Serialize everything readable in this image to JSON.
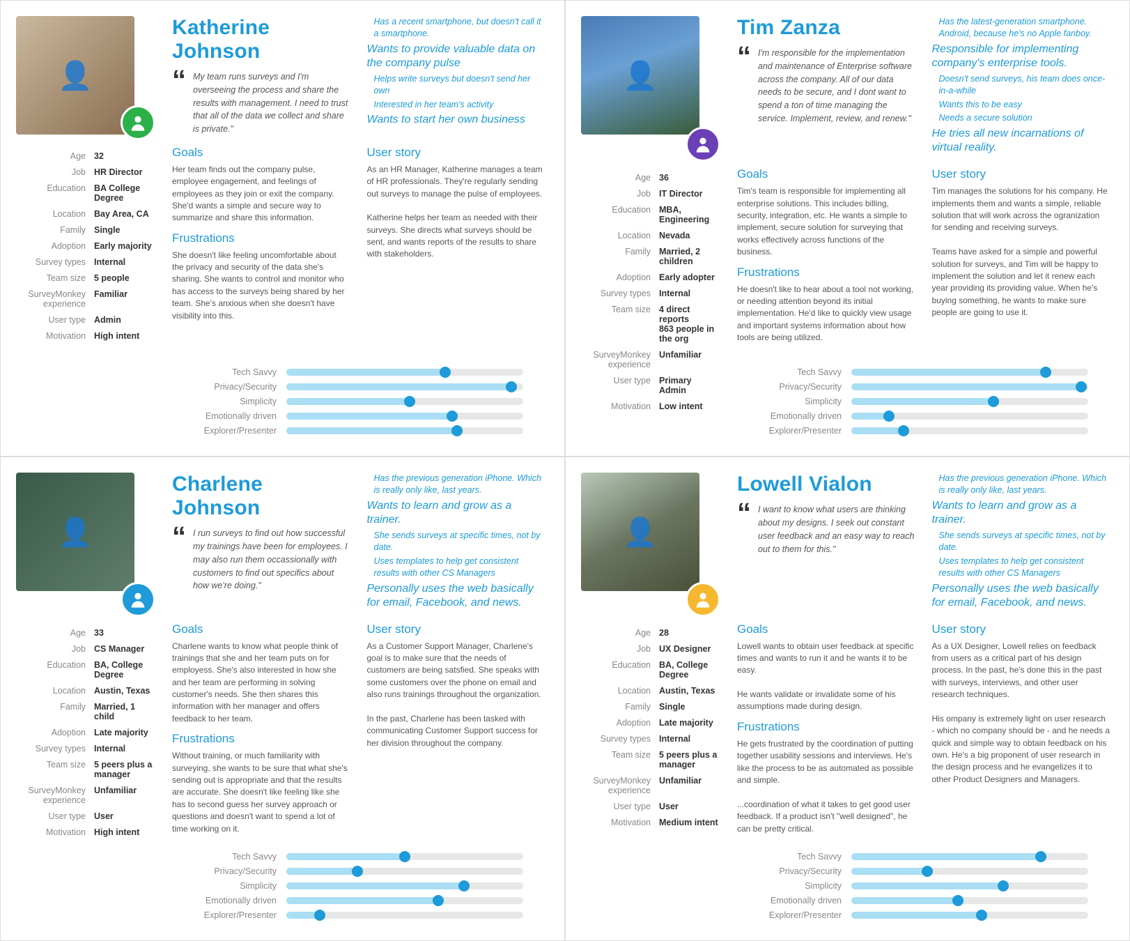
{
  "colors": {
    "accent": "#1e9bd8",
    "fill": "#a9def4",
    "track": "#e7e7e7",
    "label": "#888888",
    "body": "#555555"
  },
  "attr_labels": [
    "Age",
    "Job",
    "Education",
    "Location",
    "Family",
    "Adoption",
    "Survey types",
    "Team size",
    "SurveyMonkey experience",
    "User type",
    "Motivation"
  ],
  "slider_labels": [
    "Tech Savvy",
    "Privacy/Security",
    "Simplicity",
    "Emotionally driven",
    "Explorer/Presenter"
  ],
  "section_headings": {
    "goals": "Goals",
    "frustrations": "Frustrations",
    "user_story": "User story"
  },
  "personas": [
    {
      "name": "Katherine Johnson",
      "photo_bg": "linear-gradient(135deg,#cbb89e,#8a6f52)",
      "badge_bg": "#2bb04a",
      "quote": "My team runs surveys and I'm overseeing the process and share the results with management. I need to trust that all of the data we collect and share is private.\"",
      "traits": [
        {
          "t": "Has a recent smartphone, but doesn't call it a smartphone.",
          "hl": false
        },
        {
          "t": "Wants to provide valuable data on the company pulse",
          "hl": true
        },
        {
          "t": "Helps write surveys but doesn't send her own",
          "hl": false
        },
        {
          "t": "Interested in her team's activity",
          "hl": false
        },
        {
          "t": "Wants to start her own business",
          "hl": true
        }
      ],
      "attrs": [
        "32",
        "HR Director",
        "BA College Degree",
        "Bay Area, CA",
        "Single",
        "Early majority",
        "Internal",
        "5 people",
        "Familiar",
        "Admin",
        "High intent"
      ],
      "goals": "Her team finds out the company pulse, employee engagement, and feelings of employees as they join or exit the company. She'd wants a simple and secure way to summarize and share this information.",
      "frustrations": "She doesn't like feeling uncomfortable about the privacy and security of the data she's sharing. She wants to control and monitor who has access to the surveys being shared by her team. She's anxious when she doesn't have visibility into this.",
      "user_story": "As an HR Manager, Katherine manages a team of HR professionals. They're regularly sending out surveys to manage the pulse of employees.\n\nKatherine helps her team as needed with their surveys. She directs what surveys should be sent, and wants reports of the results to share with stakeholders.",
      "sliders": [
        67,
        95,
        52,
        70,
        72
      ]
    },
    {
      "name": "Tim Zanza",
      "photo_bg": "linear-gradient(160deg,#4a7bb5 0%,#6aa0d4 40%,#3a5c3a 100%)",
      "badge_bg": "#6b3fb5",
      "quote": "I'm responsible for the implementation and maintenance of Enterprise software across the company. All of our data needs to be secure, and I dont want to spend a ton of time managing the service. Implement, review, and renew.\"",
      "traits": [
        {
          "t": "Has the latest-generation smartphone. Android, because he's no Apple fanboy.",
          "hl": false
        },
        {
          "t": "Responsible for implementing company's enterprise tools.",
          "hl": true
        },
        {
          "t": "Doesn't send surveys, his team does once-in-a-while",
          "hl": false
        },
        {
          "t": "Wants this to be easy",
          "hl": false
        },
        {
          "t": "Needs a secure solution",
          "hl": false
        },
        {
          "t": "He tries all new incarnations of virtual reality.",
          "hl": true
        }
      ],
      "attrs": [
        "36",
        "IT Director",
        "MBA, Engineering",
        "Nevada",
        "Married, 2 children",
        "Early adopter",
        "Internal",
        "4 direct reports\n863 people in the org",
        "Unfamiliar",
        "Primary Admin",
        "Low intent"
      ],
      "goals": "Tim's team is responsible for implementing all enterprise solutions. This includes billing, security, integration, etc. He wants a simple to implement, secure solution for surveying that works effectively across functions of the business.",
      "frustrations": "He doesn't like to hear about a tool not working, or needing attention beyond its initial implementation. He'd like to quickly view usage and important systems information about how tools are being utilized.",
      "user_story": "Tim manages the solutions for his company. He implements them and wants a simple, reliable solution that will work across the ogranization for sending and receiving surveys.\n\nTeams have asked for a simple and powerful solution for surveys, and Tim will be happy to implement the solution and let it renew each year providing its providing value. When he's buying something, he wants to make sure people are going to use it.",
      "sliders": [
        82,
        97,
        60,
        16,
        22
      ]
    },
    {
      "name": "Charlene Johnson",
      "photo_bg": "linear-gradient(135deg,#3a5a4a,#5e7d6a)",
      "badge_bg": "#1e9bd8",
      "quote": "I run surveys to find out how successful my trainings have been for employees. I may also run them occassionally with customers to find out specifics about how we're doing.\"",
      "traits": [
        {
          "t": "Has the previous generation iPhone. Which is really only like, last years.",
          "hl": false
        },
        {
          "t": "Wants to learn and grow as a trainer.",
          "hl": true
        },
        {
          "t": "She sends surveys at specific times, not by date.",
          "hl": false
        },
        {
          "t": "Uses templates to help get consistent results with other CS Managers",
          "hl": false
        },
        {
          "t": "Personally uses the web basically for email, Facebook, and news.",
          "hl": true
        }
      ],
      "attrs": [
        "33",
        "CS Manager",
        "BA, College Degree",
        "Austin, Texas",
        "Married, 1 child",
        "Late majority",
        "Internal",
        "5 peers plus a manager",
        "Unfamiliar",
        "User",
        "High intent"
      ],
      "goals": "Charlene wants to know what people think of trainings that she and her team puts on for employess. She's also interested in how she and her team are performing in solving customer's needs. She then shares this information with her manager and offers feedback to her team.",
      "frustrations": "Without training, or much familiarity with surveying, she wants to be sure that what she's sending out is appropriate and that the results are accurate.  She doesn't like feeling like she has to second guess her survey approach or questions and doesn't want to spend a lot of time working on it.",
      "user_story": "As a Customer Support Manager, Charlene's goal is to make sure that the needs of customers are being satsfied. She speaks with some customers over the phone on email and also runs trainings throughout the organization.\n\nIn the past, Charlene has been tasked with communicating Customer Support success for her division throughout the company.",
      "sliders": [
        50,
        30,
        75,
        64,
        14
      ]
    },
    {
      "name": "Lowell Vialon",
      "photo_bg": "linear-gradient(150deg,#b8c9b8 0%,#6a7560 50%,#4a503a 100%)",
      "badge_bg": "#f5b82e",
      "quote": "I want to know what users are thinking about my designs. I seek out constant user feedback and an easy way to reach out to them for this.\"",
      "traits": [
        {
          "t": "Has the previous generation iPhone. Which is really only like, last years.",
          "hl": false
        },
        {
          "t": "Wants to learn and grow as a trainer.",
          "hl": true
        },
        {
          "t": "She sends surveys at specific times, not by date.",
          "hl": false
        },
        {
          "t": "Uses templates to help get consistent results with other CS Managers",
          "hl": false
        },
        {
          "t": "Personally uses the web basically for email, Facebook, and news.",
          "hl": true
        }
      ],
      "attrs": [
        "28",
        "UX Designer",
        "BA, College Degree",
        "Austin, Texas",
        "Single",
        "Late majority",
        "Internal",
        "5 peers plus a manager",
        "Unfamiliar",
        "User",
        "Medium intent"
      ],
      "goals": "Lowell wants to obtain user feedback at specific times and wants to run it and he wants it to be easy.\n\nHe wants validate or invalidate some of his assumptions made during design.",
      "frustrations": "He gets frustrated by the coordination of putting together usability sessions and interviews. He's like the process to be as automated as possible and simple.\n\n...coordination of what it takes to get good user feedback. If a product isn't \"well designed\", he can be pretty critical.",
      "user_story": "As a UX Designer, Lowell relies on feedback from users as a critical part of his design process. In the past, he's done this in the past with surveys, interviews, and other user research techniques.\n\nHis ompany is extremely light on user research - which no company should be - and he needs a quick and simple way to obtain feedback on his own. He's a big proponent of user research in the design process and he evangelizes it to other Product Designers and Managers.",
      "sliders": [
        80,
        32,
        64,
        45,
        55
      ]
    }
  ]
}
